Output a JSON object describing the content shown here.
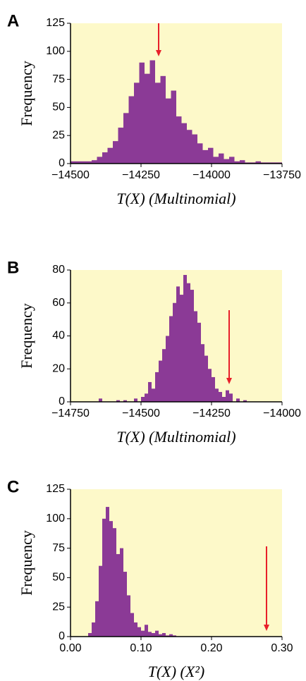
{
  "chart_data": [
    {
      "type": "histogram",
      "panel": "A",
      "xlabel": "T(X) (Multinomial)",
      "ylabel": "Frequency",
      "bins": [
        -14500,
        -14481.25,
        -14462.5,
        -14443.75,
        -14425,
        -14406.25,
        -14387.5,
        -14368.75,
        -14350,
        -14331.25,
        -14312.5,
        -14293.75,
        -14275,
        -14256.25,
        -14237.5,
        -14218.75,
        -14200,
        -14181.25,
        -14162.5,
        -14143.75,
        -14125,
        -14106.25,
        -14087.5,
        -14068.75,
        -14050,
        -14031.25,
        -14012.5,
        -13993.75,
        -13975,
        -13956.25,
        -13937.5,
        -13918.75,
        -13900,
        -13881.25,
        -13862.5,
        -13843.75,
        -13825,
        -13806.25,
        -13787.5,
        -13768.75,
        -13750
      ],
      "values": [
        2,
        2,
        2,
        2,
        3,
        6,
        10,
        14,
        20,
        32,
        45,
        60,
        72,
        90,
        80,
        92,
        72,
        78,
        58,
        65,
        42,
        36,
        30,
        26,
        18,
        12,
        14,
        6,
        9,
        4,
        6,
        2,
        3,
        1,
        1,
        2,
        1,
        1,
        1,
        1
      ],
      "color": "#8b3a96",
      "arrow_x": -14187.5,
      "arrow_color": "#e8202a",
      "xlim": [
        -14500,
        -13750
      ],
      "ylim": [
        0,
        125
      ],
      "xticks": [
        {
          "value": -14500,
          "label": "−14500"
        },
        {
          "value": -14250,
          "label": "−14250"
        },
        {
          "value": -14000,
          "label": "−14000"
        },
        {
          "value": -13750,
          "label": "−13750"
        }
      ],
      "yticks": [
        0,
        25,
        50,
        75,
        100,
        125
      ]
    },
    {
      "type": "histogram",
      "panel": "B",
      "xlabel": "T(X) (Multinomial)",
      "ylabel": "Frequency",
      "bins": [
        -14650,
        -14637.5,
        -14625,
        -14612.5,
        -14600,
        -14587.5,
        -14575,
        -14562.5,
        -14550,
        -14537.5,
        -14525,
        -14512.5,
        -14500,
        -14487.5,
        -14475,
        -14462.5,
        -14450,
        -14437.5,
        -14425,
        -14412.5,
        -14400,
        -14387.5,
        -14375,
        -14362.5,
        -14350,
        -14337.5,
        -14325,
        -14312.5,
        -14300,
        -14287.5,
        -14275,
        -14262.5,
        -14250,
        -14237.5,
        -14225,
        -14212.5,
        -14200,
        -14187.5,
        -14175,
        -14162.5,
        -14150,
        -14137.5,
        -14125
      ],
      "values": [
        2,
        0,
        0,
        0,
        0,
        1,
        0,
        1,
        0,
        0,
        2,
        0,
        3,
        5,
        12,
        8,
        18,
        25,
        32,
        40,
        52,
        60,
        70,
        65,
        77,
        72,
        68,
        55,
        48,
        35,
        28,
        20,
        15,
        8,
        6,
        3,
        7,
        5,
        0,
        2,
        0,
        1
      ],
      "color": "#8b3a96",
      "arrow_x": -14187.5,
      "arrow_color": "#e8202a",
      "xlim": [
        -14750,
        -14000
      ],
      "ylim": [
        0,
        80
      ],
      "xticks": [
        {
          "value": -14750,
          "label": "−14750"
        },
        {
          "value": -14500,
          "label": "−14500"
        },
        {
          "value": -14250,
          "label": "−14250"
        },
        {
          "value": -14000,
          "label": "−14000"
        }
      ],
      "yticks": [
        0,
        20,
        40,
        60,
        80
      ]
    },
    {
      "type": "histogram",
      "panel": "C",
      "xlabel": "T(X) (X²)",
      "ylabel": "Frequency",
      "bins": [
        0.025,
        0.03,
        0.035,
        0.04,
        0.045,
        0.05,
        0.055,
        0.06,
        0.065,
        0.07,
        0.075,
        0.08,
        0.085,
        0.09,
        0.095,
        0.1,
        0.105,
        0.11,
        0.115,
        0.12,
        0.125,
        0.13,
        0.135,
        0.14,
        0.145,
        0.15
      ],
      "values": [
        3,
        12,
        30,
        60,
        100,
        110,
        98,
        92,
        70,
        75,
        55,
        35,
        20,
        12,
        8,
        5,
        10,
        4,
        3,
        5,
        2,
        3,
        1,
        2,
        1
      ],
      "color": "#8b3a96",
      "arrow_x": 0.278,
      "arrow_color": "#e8202a",
      "xlim": [
        0,
        0.3
      ],
      "ylim": [
        0,
        125
      ],
      "xticks": [
        {
          "value": 0,
          "label": "0.00"
        },
        {
          "value": 0.1,
          "label": "0.10"
        },
        {
          "value": 0.2,
          "label": "0.20"
        },
        {
          "value": 0.3,
          "label": "0.30"
        }
      ],
      "yticks": [
        0,
        25,
        50,
        75,
        100,
        125
      ]
    }
  ]
}
